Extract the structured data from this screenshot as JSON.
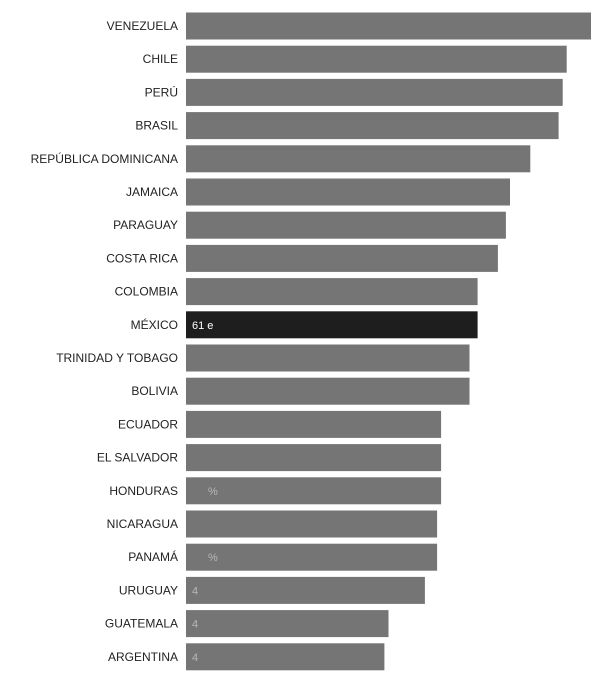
{
  "chart_data": {
    "type": "bar",
    "orientation": "horizontal",
    "title": "",
    "xlabel": "",
    "ylabel": "",
    "grid": false,
    "legend": "none",
    "xlim": [
      0,
      100
    ],
    "categories": [
      "VENEZUELA",
      "CHILE",
      "PERÚ",
      "BRASIL",
      "REPÚBLICA DOMINICANA",
      "JAMAICA",
      "PARAGUAY",
      "COSTA RICA",
      "COLOMBIA",
      "MÉXICO",
      "TRINIDAD Y TOBAGO",
      "BOLIVIA",
      "ECUADOR",
      "EL SALVADOR",
      "HONDURAS",
      "NICARAGUA",
      "PANAMÁ",
      "URUGUAY",
      "GUATEMALA",
      "ARGENTINA"
    ],
    "values": [
      100,
      94,
      93,
      92,
      85,
      80,
      79,
      77,
      72,
      72,
      70,
      70,
      63,
      63,
      63,
      62,
      62,
      59,
      50,
      49
    ],
    "data_labels": [
      "",
      "",
      "",
      "",
      "",
      "",
      "",
      "",
      "",
      "61 e",
      "",
      "",
      "",
      "",
      "%",
      "",
      "%",
      "4",
      "4",
      "4"
    ],
    "colors": {
      "bar": "#757575",
      "highlight_bar": "#1e1e1e",
      "label_on_highlight": "#ffffff",
      "label_on_bar": "#b8b8b8"
    },
    "highlight_index": 9
  }
}
